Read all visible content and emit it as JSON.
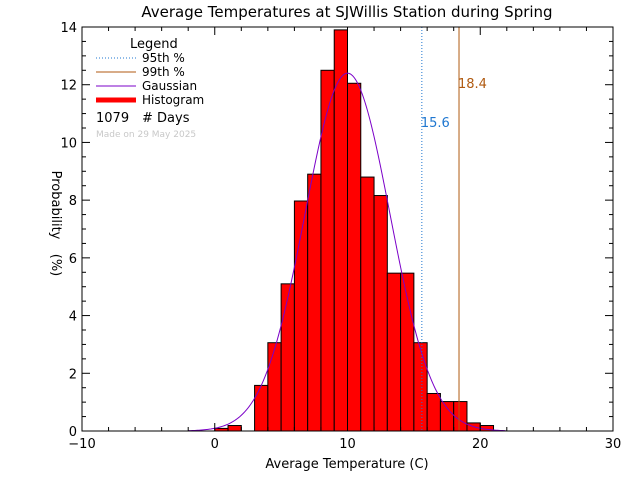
{
  "chart_data": {
    "type": "bar",
    "title": "Average Temperatures at SJWillis Station during Spring",
    "xlabel": "Average Temperature (C)",
    "ylabel": [
      "Probability",
      "(%)"
    ],
    "xlim": [
      -10,
      30
    ],
    "ylim": [
      0,
      14
    ],
    "xticks": [
      -10,
      0,
      10,
      20,
      30
    ],
    "yticks": [
      0,
      2,
      4,
      6,
      8,
      10,
      12,
      14
    ],
    "xtick_labels": [
      "−10",
      "0",
      "10",
      "20",
      "30"
    ],
    "ytick_labels": [
      "0",
      "2",
      "4",
      "6",
      "8",
      "10",
      "12",
      "14"
    ],
    "bin_width": 1,
    "histogram": {
      "name": "Histogram",
      "color": "#ff0000",
      "bins": [
        {
          "x0": 0,
          "value": 0.09
        },
        {
          "x0": 1,
          "value": 0.19
        },
        {
          "x0": 3,
          "value": 1.58
        },
        {
          "x0": 4,
          "value": 3.06
        },
        {
          "x0": 5,
          "value": 5.1
        },
        {
          "x0": 6,
          "value": 7.97
        },
        {
          "x0": 7,
          "value": 8.9
        },
        {
          "x0": 8,
          "value": 12.5
        },
        {
          "x0": 9,
          "value": 13.9
        },
        {
          "x0": 10,
          "value": 12.05
        },
        {
          "x0": 11,
          "value": 8.8
        },
        {
          "x0": 12,
          "value": 8.16
        },
        {
          "x0": 13,
          "value": 5.47
        },
        {
          "x0": 14,
          "value": 5.47
        },
        {
          "x0": 15,
          "value": 3.06
        },
        {
          "x0": 16,
          "value": 1.3
        },
        {
          "x0": 17,
          "value": 1.02
        },
        {
          "x0": 18,
          "value": 1.02
        },
        {
          "x0": 19,
          "value": 0.28
        },
        {
          "x0": 20,
          "value": 0.19
        }
      ]
    },
    "gaussian": {
      "name": "Gaussian",
      "color": "#7b00c8",
      "mean": 10.0,
      "sigma": 3.2,
      "peak": 12.4
    },
    "percentiles": [
      {
        "name": "95th %",
        "value": 15.6,
        "label": "15.6",
        "color": "#1f77d0",
        "style": "dotted"
      },
      {
        "name": "99th %",
        "value": 18.4,
        "label": "18.4",
        "color": "#b05a10",
        "style": "solid"
      }
    ],
    "legend": {
      "title": "Legend",
      "position": "top-left",
      "entries": [
        {
          "label": "95th %",
          "color": "#1f77d0",
          "style": "dotted"
        },
        {
          "label": "99th %",
          "color": "#b05a10",
          "style": "solid"
        },
        {
          "label": "Gaussian",
          "color": "#7b00c8",
          "style": "solid"
        },
        {
          "label": "Histogram",
          "color": "#ff0000",
          "style": "thick"
        }
      ],
      "count_value": "1079",
      "count_label": "# Days",
      "note": "Made on 29 May 2025"
    }
  }
}
